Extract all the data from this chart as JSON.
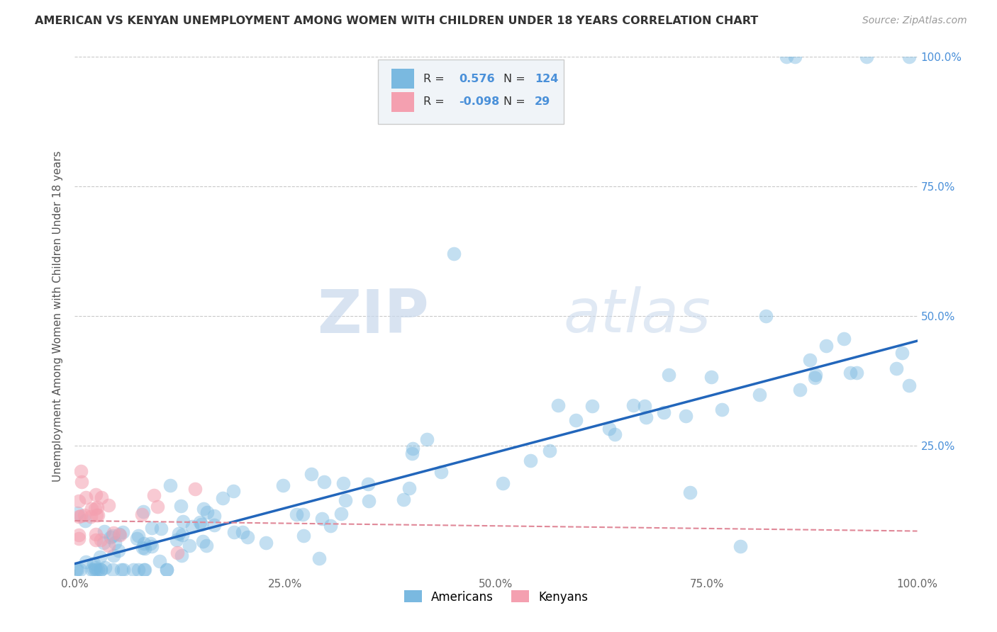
{
  "title": "AMERICAN VS KENYAN UNEMPLOYMENT AMONG WOMEN WITH CHILDREN UNDER 18 YEARS CORRELATION CHART",
  "source": "Source: ZipAtlas.com",
  "ylabel": "Unemployment Among Women with Children Under 18 years",
  "r_american": 0.576,
  "n_american": 124,
  "r_kenyan": -0.098,
  "n_kenyan": 29,
  "american_color": "#7ab9e0",
  "kenyan_color": "#f4a0b0",
  "trendline_american_color": "#2266bb",
  "trendline_kenyan_color": "#e08898",
  "watermark_zip": "ZIP",
  "watermark_atlas": "atlas",
  "background_color": "#ffffff",
  "grid_color": "#bbbbbb",
  "xlim": [
    0,
    1.0
  ],
  "ylim": [
    0,
    1.0
  ],
  "right_tick_color": "#4a90d9",
  "legend_box_color": "#e8eef5",
  "legend_text_color": "#333333",
  "legend_value_color": "#4a90d9"
}
